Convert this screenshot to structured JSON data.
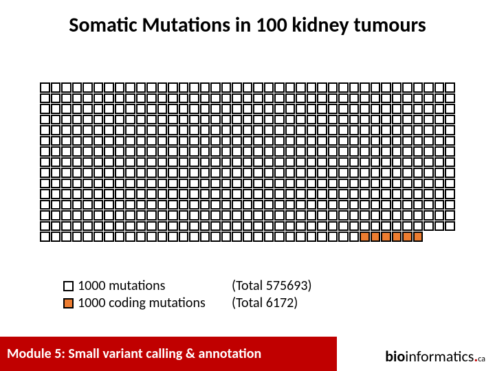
{
  "title": "Somatic Mutations in 100 kidney tumours",
  "grid": {
    "cols": 39,
    "rows": 15,
    "total_cells": 582,
    "orange_start_index": 576,
    "cell_border_color": "#000000",
    "cell_bg_color": "#ffffff",
    "orange_color": "#ed7d31",
    "last_row_count": 36
  },
  "legend": {
    "row1": {
      "swatch": "white",
      "label": "1000 mutations",
      "total": "(Total 575693)"
    },
    "row2": {
      "swatch": "orange",
      "label": "1000 coding mutations",
      "total": "(Total 6172)"
    }
  },
  "footer": {
    "module": "Module 5: Small variant calling & annotation",
    "brand_bio": "bio",
    "brand_informatics": "informatics",
    "brand_dot": ".",
    "brand_ca": "ca",
    "bar_color": "#c00000"
  }
}
